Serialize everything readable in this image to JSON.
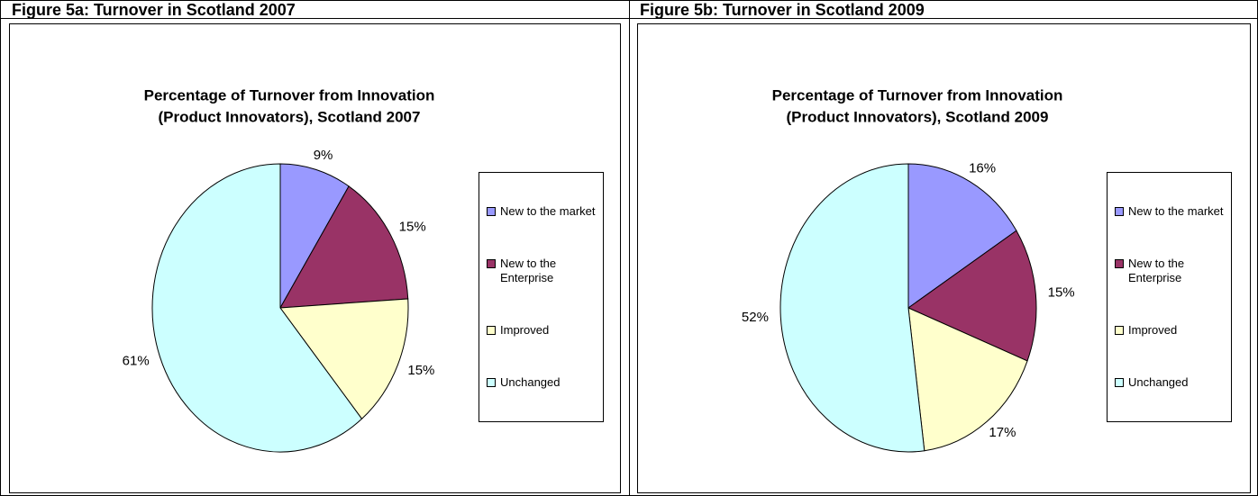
{
  "chart_data": [
    {
      "type": "pie",
      "heading": "Figure 5a: Turnover in Scotland 2007",
      "title": [
        "Percentage of Turnover from Innovation",
        "(Product Innovators), Scotland 2007"
      ],
      "categories": [
        "New to the market",
        "New to the Enterprise",
        "Improved",
        "Unchanged"
      ],
      "values": [
        9,
        15,
        15,
        61
      ],
      "value_labels": [
        "9%",
        "15%",
        "15%",
        "61%"
      ],
      "colors": [
        "#9999ff",
        "#993366",
        "#ffffcc",
        "#ccffff"
      ],
      "legend": "right"
    },
    {
      "type": "pie",
      "heading": "Figure 5b: Turnover in Scotland 2009",
      "title": [
        "Percentage of Turnover from Innovation",
        "(Product Innovators), Scotland 2009"
      ],
      "categories": [
        "New to the market",
        "New to the Enterprise",
        "Improved",
        "Unchanged"
      ],
      "values": [
        16,
        15,
        17,
        52
      ],
      "value_labels": [
        "16%",
        "15%",
        "17%",
        "52%"
      ],
      "colors": [
        "#9999ff",
        "#993366",
        "#ffffcc",
        "#ccffff"
      ],
      "legend": "right"
    }
  ]
}
